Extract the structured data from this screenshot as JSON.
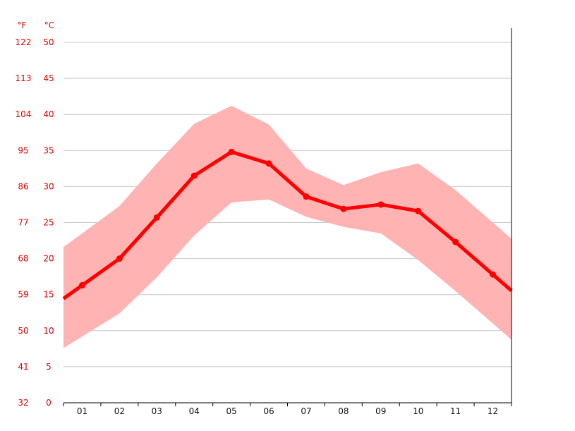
{
  "chart_data": {
    "type": "area",
    "title": "",
    "xlabel": "",
    "ylabel": "",
    "grid": true,
    "legend": "none",
    "colors": {
      "line": "#ff0000",
      "band": "#ffb3b3",
      "tick_text": "#e00000",
      "x_text": "#111111",
      "grid": "#c8c8c8"
    },
    "units": {
      "left": "°F",
      "right": "°C"
    },
    "ylim": [
      0,
      50
    ],
    "y_ticks_c": [
      50,
      45,
      40,
      35,
      30,
      25,
      20,
      15,
      10,
      5,
      0
    ],
    "y_ticks_f": [
      122,
      113,
      104,
      95,
      86,
      77,
      68,
      59,
      50,
      41,
      32
    ],
    "categories": [
      "01",
      "02",
      "03",
      "04",
      "05",
      "06",
      "07",
      "08",
      "09",
      "10",
      "11",
      "12"
    ],
    "series": [
      {
        "values": [
          16.3,
          20.0,
          25.7,
          31.5,
          34.8,
          33.2,
          28.6,
          26.9,
          27.5,
          26.6,
          22.3,
          17.8
        ]
      },
      {
        "values": [
          23.5,
          27.3,
          33.2,
          38.7,
          41.2,
          38.6,
          32.5,
          30.2,
          32.0,
          33.2,
          29.5,
          25.0
        ]
      },
      {
        "values": [
          9.2,
          12.4,
          17.4,
          23.2,
          27.8,
          28.2,
          25.8,
          24.4,
          23.5,
          19.8,
          15.5,
          11.0
        ]
      }
    ]
  }
}
